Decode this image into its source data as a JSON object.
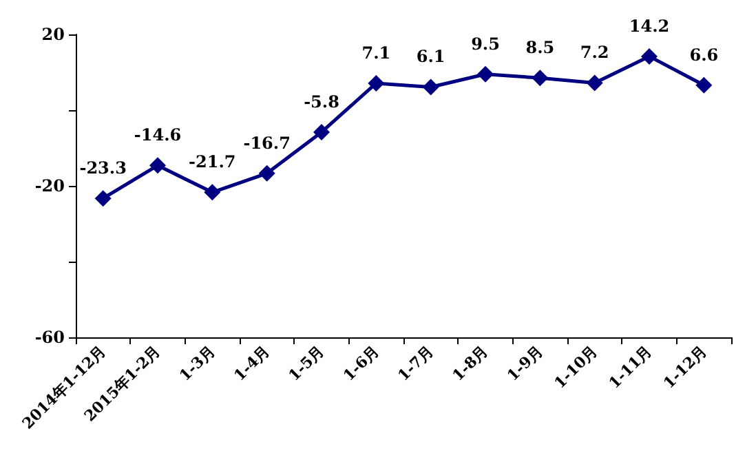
{
  "chart_data": {
    "type": "line",
    "categories": [
      "2014年1-12月",
      "2015年1-2月",
      "1-3月",
      "1-4月",
      "1-5月",
      "1-6月",
      "1-7月",
      "1-8月",
      "1-9月",
      "1-10月",
      "1-11月",
      "1-12月"
    ],
    "series": [
      {
        "color": "#000080",
        "values": [
          -23.3,
          -14.6,
          -21.7,
          -16.7,
          -5.8,
          7.1,
          6.1,
          9.5,
          8.5,
          7.2,
          14.2,
          6.6
        ]
      }
    ],
    "ylim": [
      -60,
      20
    ],
    "yticks": [
      -60,
      {
        "value": -40,
        "label": null
      },
      -20,
      {
        "value": 0,
        "label": null
      },
      20
    ],
    "grid": false,
    "marker": "diamond",
    "line_style": "solid",
    "data_labels": true
  }
}
